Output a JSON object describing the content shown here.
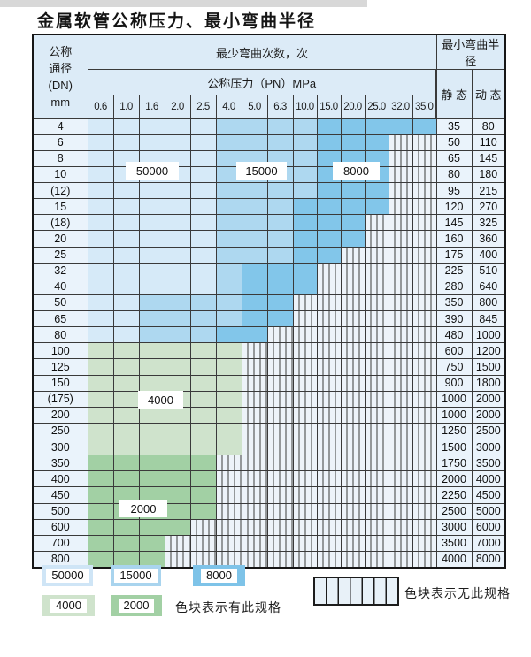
{
  "title": "金属软管公称压力、最小弯曲半径",
  "table": {
    "dn_header": [
      "公称",
      "通径",
      "(DN)",
      "mm"
    ],
    "bend_cycles_header": "最少弯曲次数，次",
    "pressure_header": "公称压力（PN）MPa",
    "radius_header": "最小弯曲半径",
    "static_header": "静 态",
    "dynamic_header": "动 态",
    "pressure_columns": [
      "0.6",
      "1.0",
      "1.6",
      "2.0",
      "2.5",
      "4.0",
      "5.0",
      "6.3",
      "10.0",
      "15.0",
      "20.0",
      "25.0",
      "32.0",
      "35.0"
    ],
    "zone_meaning": {
      "L": "50000",
      "M": "15000",
      "D": "8000",
      "G": "4000",
      "g": "2000",
      "X": "no-spec"
    },
    "rows": [
      {
        "dn": "4",
        "cells": "LLLLLMMMMDDDDD",
        "static": "35",
        "dynamic": "80"
      },
      {
        "dn": "6",
        "cells": "LLLLLMMMMDDDXX",
        "static": "50",
        "dynamic": "110"
      },
      {
        "dn": "8",
        "cells": "LLLLLMMMMDDDXX",
        "static": "65",
        "dynamic": "145"
      },
      {
        "dn": "10",
        "cells": "LLLLLMMMMDDDXX",
        "static": "80",
        "dynamic": "180"
      },
      {
        "dn": "(12)",
        "cells": "LLLLLMMMMDDDXX",
        "static": "95",
        "dynamic": "215"
      },
      {
        "dn": "15",
        "cells": "LLLLLMMMDDDDXX",
        "static": "120",
        "dynamic": "270"
      },
      {
        "dn": "(18)",
        "cells": "LLLLLMMMDDDXXX",
        "static": "145",
        "dynamic": "325"
      },
      {
        "dn": "20",
        "cells": "LLLLLMMMDDDXXX",
        "static": "160",
        "dynamic": "360"
      },
      {
        "dn": "25",
        "cells": "LLLLLMMMDDXXXX",
        "static": "175",
        "dynamic": "400"
      },
      {
        "dn": "32",
        "cells": "LLLLLMDDDXXXXX",
        "static": "225",
        "dynamic": "510"
      },
      {
        "dn": "40",
        "cells": "LLLLLMDDDXXXXX",
        "static": "280",
        "dynamic": "640"
      },
      {
        "dn": "50",
        "cells": "LLMMMMDDXXXXXX",
        "static": "350",
        "dynamic": "800"
      },
      {
        "dn": "65",
        "cells": "LLMMMMDDXXXXXX",
        "static": "390",
        "dynamic": "845"
      },
      {
        "dn": "80",
        "cells": "LLMMMDDXXXXXXX",
        "static": "480",
        "dynamic": "1000"
      },
      {
        "dn": "100",
        "cells": "GGGGGGXXXXXXXX",
        "static": "600",
        "dynamic": "1200"
      },
      {
        "dn": "125",
        "cells": "GGGGGGXXXXXXXX",
        "static": "750",
        "dynamic": "1500"
      },
      {
        "dn": "150",
        "cells": "GGGGGGXXXXXXXX",
        "static": "900",
        "dynamic": "1800"
      },
      {
        "dn": "(175)",
        "cells": "GGGGGGXXXXXXXX",
        "static": "1000",
        "dynamic": "2000"
      },
      {
        "dn": "200",
        "cells": "GGGGGGXXXXXXXX",
        "static": "1000",
        "dynamic": "2000"
      },
      {
        "dn": "250",
        "cells": "GGGGGGXXXXXXXX",
        "static": "1250",
        "dynamic": "2500"
      },
      {
        "dn": "300",
        "cells": "GGGGGGXXXXXXXX",
        "static": "1500",
        "dynamic": "3000"
      },
      {
        "dn": "350",
        "cells": "gggggXXXXXXXXX",
        "static": "1750",
        "dynamic": "3500"
      },
      {
        "dn": "400",
        "cells": "gggggXXXXXXXXX",
        "static": "2000",
        "dynamic": "4000"
      },
      {
        "dn": "450",
        "cells": "gggggXXXXXXXXX",
        "static": "2250",
        "dynamic": "4500"
      },
      {
        "dn": "500",
        "cells": "gggggXXXXXXXXX",
        "static": "2500",
        "dynamic": "5000"
      },
      {
        "dn": "600",
        "cells": "ggggXXXXXXXXXX",
        "static": "3000",
        "dynamic": "6000"
      },
      {
        "dn": "700",
        "cells": "gggXXXXXXXXXXX",
        "static": "3500",
        "dynamic": "7000"
      },
      {
        "dn": "800",
        "cells": "gggXXXXXXXXXXX",
        "static": "4000",
        "dynamic": "8000"
      }
    ]
  },
  "overlays": [
    "50000",
    "15000",
    "8000",
    "4000",
    "2000"
  ],
  "legend": {
    "items": [
      {
        "label": "50000",
        "shade": "L"
      },
      {
        "label": "15000",
        "shade": "M"
      },
      {
        "label": "8000",
        "shade": "D"
      },
      {
        "label": "4000",
        "shade": "G"
      },
      {
        "label": "2000",
        "shade": "g"
      }
    ],
    "has_spec_text": "色块表示有此规格",
    "no_spec_text": "色块表示无此规格"
  },
  "colors": {
    "light_blue": "#d6eaf8",
    "medium_blue": "#aed8f0",
    "dark_blue": "#82c6ea",
    "light_green": "#cfe3cc",
    "dark_green": "#a2d0a4",
    "header_bg": "#dcebf7",
    "label_cell_bg": "#eaf3fb"
  }
}
